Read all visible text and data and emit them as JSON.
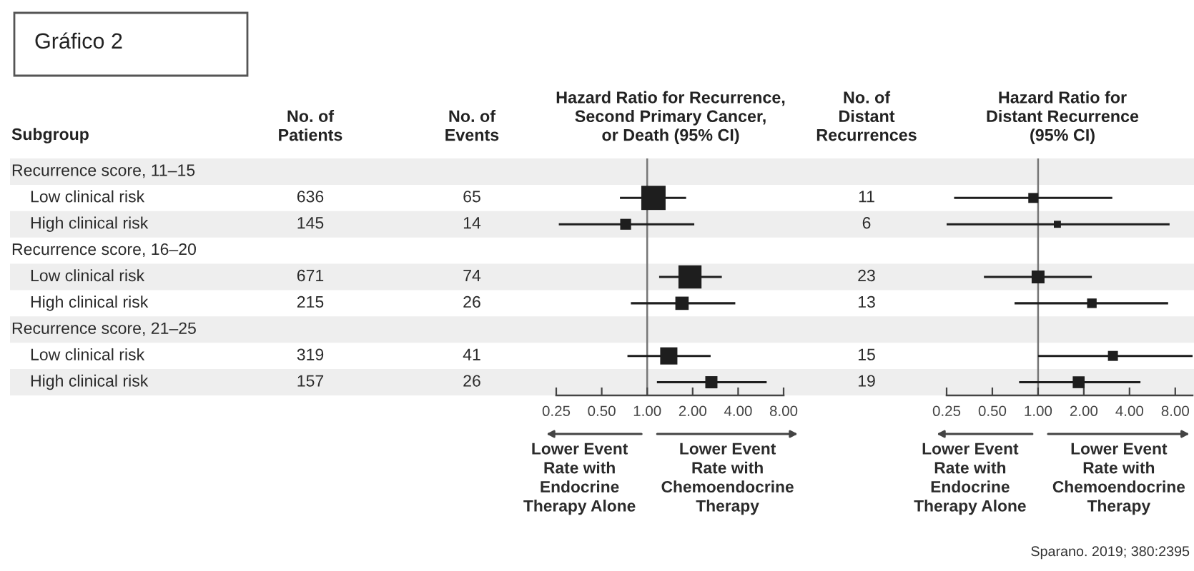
{
  "chart_data": [
    {
      "type": "other",
      "title": "No. of\nPatients",
      "ylabel": "Subgroup",
      "categories": [
        "Recurrence score, 11–15",
        "Low clinical risk",
        "High clinical risk",
        "Recurrence score, 16–20",
        "Low clinical risk",
        "High clinical risk",
        "Recurrence score, 21–25",
        "Low clinical risk",
        "High clinical risk"
      ],
      "values": [
        null,
        636,
        145,
        null,
        671,
        215,
        null,
        319,
        157
      ],
      "data_labels": true,
      "annotations": [
        "Gráfico 2"
      ]
    },
    {
      "type": "other",
      "title": "No. of\nEvents",
      "categories": [
        null,
        null,
        null,
        null,
        null,
        null,
        null,
        null,
        null
      ],
      "values": [
        null,
        65,
        14,
        null,
        74,
        26,
        null,
        41,
        26
      ],
      "data_labels": true
    },
    {
      "type": "bubble",
      "orientation": "horizontal",
      "title": "Hazard Ratio for Recurrence,\nSecond Primary Cancer,\nor Death (95% CI)",
      "categories": [
        null,
        null,
        null,
        null,
        null,
        null,
        null,
        null,
        null
      ],
      "values": [
        null,
        1.1,
        0.72,
        null,
        1.92,
        1.7,
        null,
        1.39,
        2.66
      ],
      "errors": [
        null,
        [
          0.66,
          1.81
        ],
        [
          0.26,
          2.05
        ],
        null,
        [
          1.2,
          3.12
        ],
        [
          0.78,
          3.83
        ],
        null,
        [
          0.74,
          2.63
        ],
        [
          1.16,
          6.18
        ]
      ],
      "sizes": [
        null,
        1,
        0.2,
        null,
        0.9,
        0.3,
        null,
        0.5,
        0.25
      ],
      "color": "#1e1e1e",
      "marker": "square",
      "log": "x",
      "xlim": [
        0.25,
        8
      ],
      "xticks": [
        0.25,
        {
          "value": 0.5,
          "label": "0.50"
        },
        {
          "value": 1,
          "label": "1.00"
        },
        {
          "value": 2,
          "label": "2.00"
        },
        {
          "value": 4,
          "label": "4.00"
        },
        {
          "value": 8,
          "label": "8.00"
        }
      ],
      "tick_labels": "x",
      "ref_lines": [
        {
          "axis": "x",
          "value": 1,
          "color": "#777777"
        }
      ],
      "annotations": [
        "Lower Event\nRate with\nEndocrine\nTherapy Alone",
        "Lower Event\nRate with\nChemoendocrine\nTherapy"
      ]
    },
    {
      "type": "other",
      "title": "No. of\nDistant\nRecurrences",
      "categories": [
        null,
        null,
        null,
        null,
        null,
        null,
        null,
        null,
        null
      ],
      "values": [
        null,
        11,
        6,
        null,
        23,
        13,
        null,
        15,
        19
      ],
      "data_labels": true
    },
    {
      "type": "bubble",
      "orientation": "horizontal",
      "title": "Hazard Ratio for\nDistant Recurrence\n(95% CI)",
      "categories": [
        null,
        null,
        null,
        null,
        null,
        null,
        null,
        null,
        null
      ],
      "values": [
        null,
        0.93,
        1.34,
        null,
        1.0,
        2.26,
        null,
        3.11,
        1.85
      ],
      "errors": [
        null,
        [
          0.28,
          3.08
        ],
        [
          0.25,
          7.34
        ],
        null,
        [
          0.44,
          2.26
        ],
        [
          0.7,
          7.18
        ],
        null,
        [
          1.0,
          10.4
        ],
        [
          0.75,
          4.72
        ]
      ],
      "sizes": [
        null,
        0.6,
        0.3,
        null,
        1,
        0.55,
        null,
        0.6,
        0.85
      ],
      "color": "#1e1e1e",
      "marker": "square",
      "log": "x",
      "xlim": [
        0.25,
        10.4
      ],
      "xticks": [
        0.25,
        {
          "value": 0.5,
          "label": "0.50"
        },
        {
          "value": 1,
          "label": "1.00"
        },
        {
          "value": 2,
          "label": "2.00"
        },
        {
          "value": 4,
          "label": "4.00"
        },
        {
          "value": 8,
          "label": "8.00"
        }
      ],
      "tick_labels": "x",
      "ref_lines": [
        {
          "axis": "x",
          "value": 1,
          "color": "#777777"
        }
      ],
      "annotations": [
        "Lower Event\nRate with\nEndocrine\nTherapy Alone",
        "Lower Event\nRate with\nChemoendocrine\nTherapy",
        "Sparano. 2019; 380:2395"
      ]
    }
  ]
}
